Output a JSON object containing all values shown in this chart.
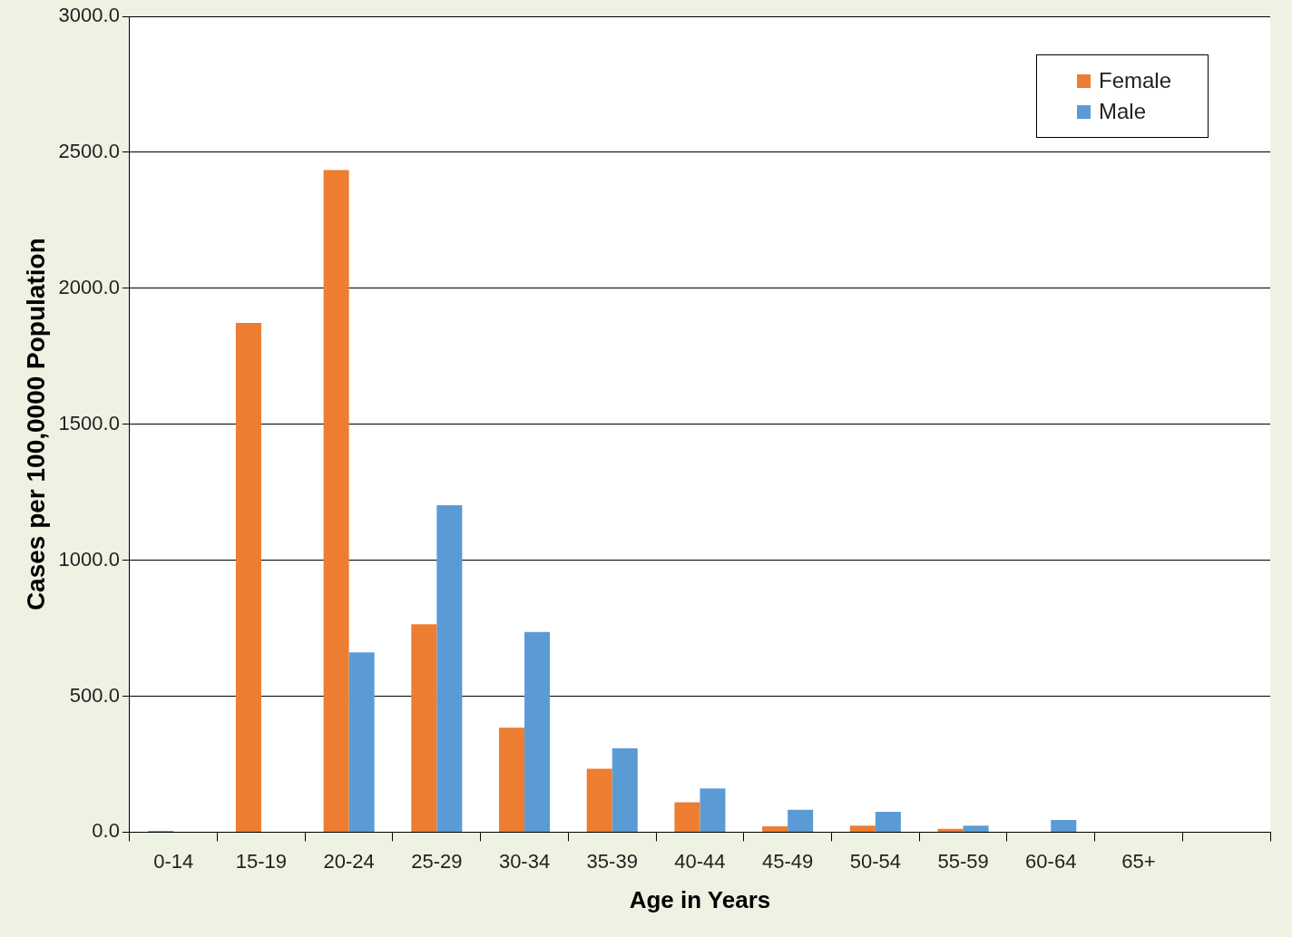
{
  "chart_data": {
    "type": "bar",
    "xlabel": "Age in Years",
    "ylabel": "Cases per 100,0000 Population",
    "categories": [
      "0-14",
      "15-19",
      "20-24",
      "25-29",
      "30-34",
      "35-39",
      "40-44",
      "45-49",
      "50-54",
      "55-59",
      "60-64",
      "65+",
      null
    ],
    "series": [
      {
        "name": "Female",
        "color": "#ed7d31",
        "values": [
          5,
          1873,
          2435,
          764,
          384,
          233,
          110,
          21,
          24,
          12,
          0,
          0,
          0
        ]
      },
      {
        "name": "Male",
        "color": "#5b9bd5",
        "values": [
          0,
          0,
          661,
          1202,
          736,
          308,
          161,
          82,
          75,
          24,
          45,
          0,
          0
        ]
      }
    ],
    "ylim": [
      0,
      3000
    ],
    "yticks": [
      {
        "value": 0,
        "label": "0.0"
      },
      {
        "value": 500,
        "label": "500.0"
      },
      {
        "value": 1000,
        "label": "1000.0"
      },
      {
        "value": 1500,
        "label": "1500.0"
      },
      {
        "value": 2000,
        "label": "2000.0"
      },
      {
        "value": 2500,
        "label": "2500.0"
      },
      {
        "value": 3000,
        "label": "3000.0"
      }
    ],
    "grid": "y",
    "legend": "top right"
  }
}
